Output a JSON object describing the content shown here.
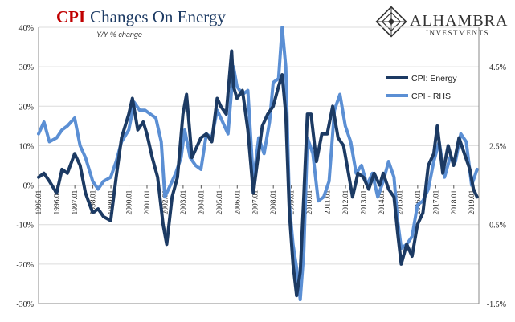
{
  "header": {
    "title_cpi": "CPI",
    "title_rest": "Changes On Energy",
    "subtitle": "Y/Y % change"
  },
  "logo": {
    "name": "ALHAMBRA",
    "tagline": "INVESTMENTS"
  },
  "chart_data": {
    "type": "line",
    "x_labels": [
      "1995.01",
      "1996.01",
      "1997.01",
      "1998.01",
      "1999.01",
      "2000.01",
      "2001.01",
      "2002.01",
      "2003.01",
      "2004.01",
      "2005.01",
      "2006.01",
      "2007.01",
      "2008.01",
      "2009.01",
      "2010.01",
      "2011.01",
      "2012.01",
      "2013.01",
      "2014.01",
      "2015.01",
      "2016.01",
      "2017.01",
      "2018.01",
      "2019.01"
    ],
    "y_left": {
      "ticks": [
        "40%",
        "30%",
        "20%",
        "10%",
        "0%",
        "-10%",
        "-20%",
        "-30%"
      ],
      "ylim": [
        -30,
        40
      ]
    },
    "y_right": {
      "ticks": [
        "4.5%",
        "2.5%",
        "0.5%",
        "-1.5%"
      ],
      "ylim": [
        -1.5,
        5.5
      ]
    },
    "grid": true,
    "legend_position": "right",
    "series": [
      {
        "name": "CPI: Energy",
        "axis": "left",
        "color": "#1c3a63",
        "x": [
          1995.0,
          1995.3,
          1995.6,
          1996.0,
          1996.3,
          1996.6,
          1997.0,
          1997.3,
          1997.6,
          1998.0,
          1998.3,
          1998.6,
          1999.0,
          1999.3,
          1999.6,
          2000.0,
          2000.2,
          2000.5,
          2000.8,
          2001.0,
          2001.3,
          2001.6,
          2001.9,
          2002.1,
          2002.4,
          2002.7,
          2003.0,
          2003.2,
          2003.5,
          2003.8,
          2004.0,
          2004.3,
          2004.6,
          2004.9,
          2005.1,
          2005.4,
          2005.7,
          2005.8,
          2006.0,
          2006.3,
          2006.6,
          2006.9,
          2007.1,
          2007.4,
          2007.7,
          2008.0,
          2008.3,
          2008.5,
          2008.7,
          2008.9,
          2009.1,
          2009.3,
          2009.5,
          2009.7,
          2009.9,
          2010.1,
          2010.4,
          2010.7,
          2011.0,
          2011.3,
          2011.6,
          2011.9,
          2012.1,
          2012.4,
          2012.7,
          2013.0,
          2013.3,
          2013.6,
          2013.9,
          2014.1,
          2014.4,
          2014.7,
          2014.9,
          2015.1,
          2015.4,
          2015.7,
          2016.0,
          2016.3,
          2016.6,
          2016.9,
          2017.1,
          2017.4,
          2017.7,
          2018.0,
          2018.3,
          2018.6,
          2018.9,
          2019.1,
          2019.3
        ],
        "values": [
          2,
          3,
          1,
          -2,
          4,
          3,
          8,
          5,
          -2,
          -7,
          -6,
          -8,
          -9,
          2,
          12,
          18,
          22,
          14,
          16,
          13,
          7,
          2,
          -10,
          -15,
          -3,
          2,
          18,
          23,
          7,
          10,
          12,
          13,
          11,
          22,
          20,
          18,
          34,
          25,
          22,
          24,
          14,
          -2,
          5,
          15,
          18,
          20,
          25,
          28,
          18,
          -7,
          -20,
          -28,
          -22,
          -3,
          18,
          18,
          6,
          13,
          13,
          20,
          12,
          10,
          5,
          -3,
          3,
          2,
          -1,
          3,
          0,
          3,
          -1,
          -3,
          -12,
          -20,
          -15,
          -18,
          -10,
          -7,
          5,
          8,
          15,
          3,
          10,
          5,
          12,
          8,
          4,
          -1,
          -3
        ]
      },
      {
        "name": "CPI - RHS",
        "axis": "right",
        "color": "#5b8fd4",
        "x": [
          1995.0,
          1995.3,
          1995.6,
          1996.0,
          1996.3,
          1996.6,
          1997.0,
          1997.3,
          1997.6,
          1998.0,
          1998.3,
          1998.6,
          1999.0,
          1999.3,
          1999.6,
          2000.0,
          2000.3,
          2000.6,
          2000.9,
          2001.2,
          2001.5,
          2001.8,
          2002.0,
          2002.3,
          2002.6,
          2002.9,
          2003.1,
          2003.4,
          2003.7,
          2004.0,
          2004.3,
          2004.6,
          2004.9,
          2005.2,
          2005.5,
          2005.8,
          2006.0,
          2006.3,
          2006.6,
          2006.9,
          2007.2,
          2007.5,
          2007.8,
          2008.0,
          2008.3,
          2008.5,
          2008.7,
          2008.9,
          2009.1,
          2009.3,
          2009.5,
          2009.7,
          2009.9,
          2010.2,
          2010.5,
          2010.8,
          2011.1,
          2011.4,
          2011.7,
          2012.0,
          2012.3,
          2012.6,
          2012.9,
          2013.2,
          2013.5,
          2013.8,
          2014.1,
          2014.4,
          2014.7,
          2014.9,
          2015.1,
          2015.4,
          2015.7,
          2016.0,
          2016.3,
          2016.6,
          2016.9,
          2017.2,
          2017.5,
          2017.8,
          2018.1,
          2018.4,
          2018.7,
          2019.0,
          2019.3
        ],
        "values": [
          2.8,
          3.1,
          2.6,
          2.7,
          2.9,
          3.0,
          3.2,
          2.5,
          2.2,
          1.6,
          1.4,
          1.6,
          1.7,
          2.1,
          2.6,
          2.9,
          3.6,
          3.4,
          3.4,
          3.3,
          3.2,
          2.6,
          1.2,
          1.5,
          1.8,
          2.2,
          2.9,
          2.2,
          2.0,
          1.9,
          2.8,
          2.7,
          3.4,
          3.1,
          2.8,
          4.5,
          4.0,
          3.8,
          3.9,
          1.6,
          2.7,
          2.3,
          3.1,
          4.1,
          4.2,
          5.5,
          4.5,
          1.0,
          0.0,
          -0.6,
          -1.4,
          -0.2,
          2.7,
          2.3,
          1.1,
          1.2,
          1.6,
          3.4,
          3.8,
          3.0,
          2.6,
          1.8,
          2.0,
          1.5,
          1.8,
          1.2,
          1.6,
          2.1,
          1.7,
          0.6,
          -0.1,
          0.0,
          0.2,
          1.0,
          1.1,
          1.4,
          2.1,
          2.6,
          1.7,
          2.2,
          2.1,
          2.8,
          2.6,
          1.5,
          1.9
        ]
      }
    ]
  }
}
